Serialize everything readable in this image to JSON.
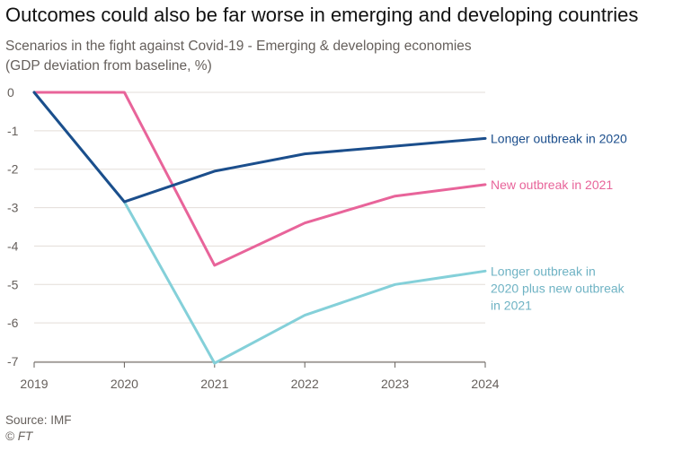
{
  "chart_data": {
    "type": "line",
    "title": "Outcomes could also be far worse in emerging and developing countries",
    "subtitle_lines": [
      "Scenarios in the fight against Covid-19 - Emerging & developing economies",
      "(GDP deviation from baseline, %)"
    ],
    "x": [
      2019,
      2020,
      2021,
      2022,
      2023,
      2024
    ],
    "x_labels": [
      "2019",
      "2020",
      "2021",
      "2022",
      "2023",
      "2024"
    ],
    "y_ticks": [
      0,
      -1,
      -2,
      -3,
      -4,
      -5,
      -6,
      -7
    ],
    "y_tick_labels": [
      "0",
      "-1",
      "-2",
      "-3",
      "-4",
      "-5",
      "-6",
      "-7"
    ],
    "ylim": [
      -7,
      0
    ],
    "grid": "horizontal",
    "series": [
      {
        "name": "Longer outbreak in 2020",
        "label_lines": [
          "Longer outbreak in 2020"
        ],
        "color": "#1b4e8c",
        "values": [
          0,
          -2.85,
          -2.05,
          -1.6,
          -1.4,
          -1.2
        ]
      },
      {
        "name": "New outbreak in 2021",
        "label_lines": [
          "New outbreak in 2021"
        ],
        "color": "#e8649a",
        "values": [
          0,
          0,
          -4.5,
          -3.4,
          -2.7,
          -2.4
        ]
      },
      {
        "name": "Longer outbreak in 2020 plus new outbreak in 2021",
        "label_lines": [
          "Longer outbreak in",
          "2020 plus new outbreak",
          "in 2021"
        ],
        "color": "#84d0d9",
        "label_color": "#6fb3c4",
        "values": [
          0,
          -2.85,
          -7.05,
          -5.8,
          -5.0,
          -4.65
        ]
      }
    ],
    "source": "Source: IMF",
    "credit": "© FT"
  }
}
